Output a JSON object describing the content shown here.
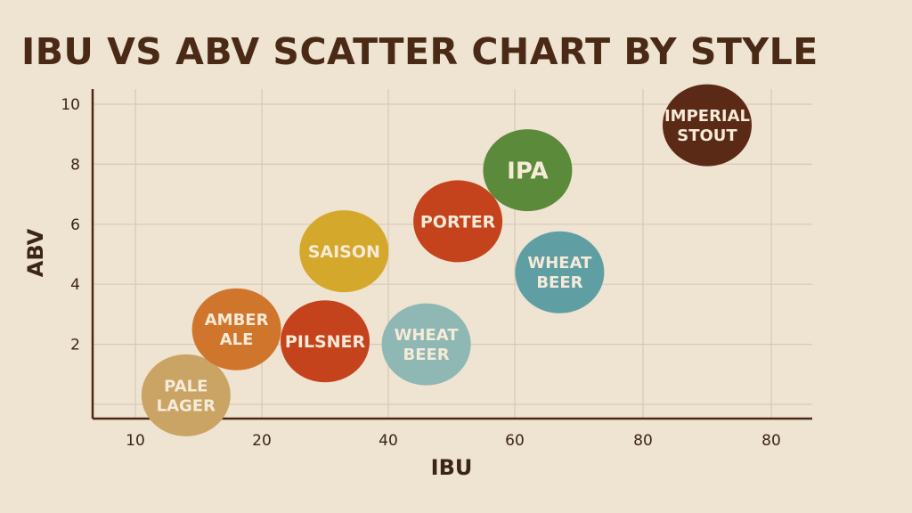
{
  "chart_data": {
    "type": "scatter",
    "title": "IBU VS ABV SCATTER CHART BY STYLE",
    "xlabel": "IBU",
    "ylabel": "ABV",
    "x_ticks": [
      "10",
      "20",
      "40",
      "60",
      "80",
      "80"
    ],
    "y_ticks": [
      "2",
      "4",
      "6",
      "8",
      "10"
    ],
    "ylim": [
      0,
      10
    ],
    "grid": true,
    "points": [
      {
        "label": [
          "PALE",
          "LAGER"
        ],
        "x": 14,
        "y": 0.3,
        "color": "#c9a465"
      },
      {
        "label": [
          "AMBER",
          "ALE"
        ],
        "x": 18,
        "y": 2.5,
        "color": "#d0762c"
      },
      {
        "label": [
          "PILSNER"
        ],
        "x": 30,
        "y": 2.1,
        "color": "#c4431d"
      },
      {
        "label": [
          "SAISON"
        ],
        "x": 33,
        "y": 5.1,
        "color": "#d4a82a"
      },
      {
        "label": [
          "WHEAT",
          "BEER"
        ],
        "x": 46,
        "y": 2.0,
        "color": "#8fb7b3"
      },
      {
        "label": [
          "PORTER"
        ],
        "x": 51,
        "y": 6.1,
        "color": "#c4431d"
      },
      {
        "label": [
          "IPA"
        ],
        "x": 62,
        "y": 7.8,
        "color": "#5a8a3a"
      },
      {
        "label": [
          "WHEAT",
          "BEER"
        ],
        "x": 67,
        "y": 4.4,
        "color": "#5f9fa3"
      },
      {
        "label": [
          "IMPERIAL",
          "STOUT"
        ],
        "x": 90,
        "y": 9.3,
        "color": "#5a2a16"
      }
    ]
  }
}
